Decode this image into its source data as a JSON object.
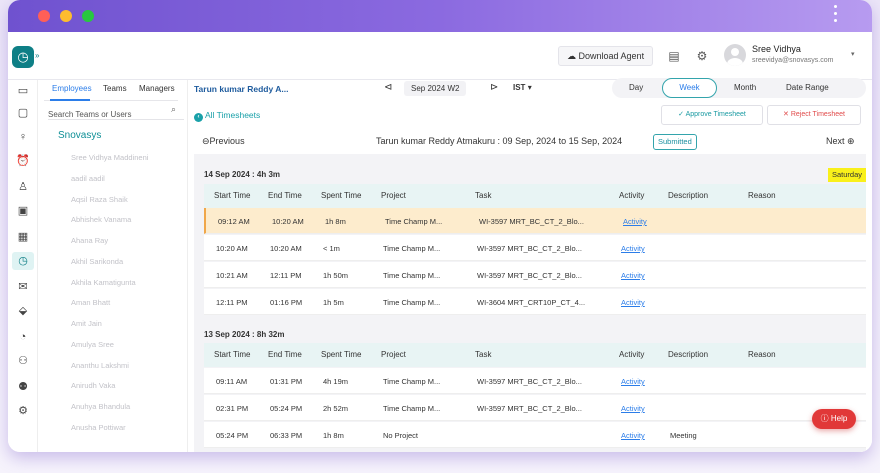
{
  "topbar": {
    "download_agent": "Download Agent",
    "user_name": "Sree Vidhya",
    "user_email": "sreevidya@snovasys.com"
  },
  "panel": {
    "tabs": [
      "Employees",
      "Teams",
      "Managers"
    ],
    "search_placeholder": "Search Teams or Users",
    "org": "Snovasys",
    "employees": [
      "Sree Vidhya Maddineni",
      "aadil aadil",
      "Aqsil Raza Shaik",
      "Abhishek Vanama",
      "Ahana Ray",
      "Akhil Sarikonda",
      "Akhila Kamatigunta",
      "Aman Bhatt",
      "Amit Jain",
      "Amulya Sree",
      "Ananthu Lakshmi",
      "Anirudh Vaka",
      "Anuhya Bhandula",
      "Anusha Pottiwar"
    ]
  },
  "filter": {
    "user": "Tarun kumar Reddy A...",
    "date": "Sep 2024  W2",
    "timezone": "IST",
    "ranges": [
      "Day",
      "Week",
      "Month",
      "Date Range"
    ]
  },
  "actions": {
    "all_timesheets": "All Timesheets",
    "approve": "Approve Timesheet",
    "reject": "Reject Timesheet"
  },
  "nav": {
    "previous": "Previous",
    "next": "Next",
    "period": "Tarun kumar Reddy Atmakuru : 09 Sep, 2024 to 15 Sep, 2024",
    "status": "Submitted"
  },
  "columns": [
    "Start Time",
    "End Time",
    "Spent Time",
    "Project",
    "Task",
    "Activity",
    "Description",
    "Reason"
  ],
  "days": [
    {
      "label": "14 Sep 2024 : 4h 3m",
      "weekday": "Saturday",
      "rows": [
        {
          "start": "09:12 AM",
          "end": "10:20 AM",
          "spent": "1h 8m",
          "project": "Time Champ M...",
          "task": "WI-3597 MRT_BC_CT_2_Blo...",
          "activity": "Activity",
          "description": "",
          "reason": ""
        },
        {
          "start": "10:20 AM",
          "end": "10:20 AM",
          "spent": "< 1m",
          "project": "Time Champ M...",
          "task": "WI-3597 MRT_BC_CT_2_Blo...",
          "activity": "Activity",
          "description": "",
          "reason": ""
        },
        {
          "start": "10:21 AM",
          "end": "12:11 PM",
          "spent": "1h 50m",
          "project": "Time Champ M...",
          "task": "WI-3597 MRT_BC_CT_2_Blo...",
          "activity": "Activity",
          "description": "",
          "reason": ""
        },
        {
          "start": "12:11 PM",
          "end": "01:16 PM",
          "spent": "1h 5m",
          "project": "Time Champ M...",
          "task": "WI-3604 MRT_CRT10P_CT_4...",
          "activity": "Activity",
          "description": "",
          "reason": ""
        }
      ]
    },
    {
      "label": "13 Sep 2024 : 8h 32m",
      "weekday": "",
      "rows": [
        {
          "start": "09:11 AM",
          "end": "01:31 PM",
          "spent": "4h 19m",
          "project": "Time Champ M...",
          "task": "WI-3597 MRT_BC_CT_2_Blo...",
          "activity": "Activity",
          "description": "",
          "reason": ""
        },
        {
          "start": "02:31 PM",
          "end": "05:24 PM",
          "spent": "2h 52m",
          "project": "Time Champ M...",
          "task": "WI-3597 MRT_BC_CT_2_Blo...",
          "activity": "Activity",
          "description": "",
          "reason": ""
        },
        {
          "start": "05:24 PM",
          "end": "06:33 PM",
          "spent": "1h 8m",
          "project": "No Project",
          "task": "",
          "activity": "Activity",
          "description": "Meeting",
          "reason": ""
        }
      ]
    }
  ],
  "help": "Help",
  "colors": {
    "accent": "#0e7f86",
    "link": "#2b7de9",
    "highlight_row": "#fdeccd",
    "weekday_badge": "#f9f01a",
    "help_button": "#e13838"
  }
}
